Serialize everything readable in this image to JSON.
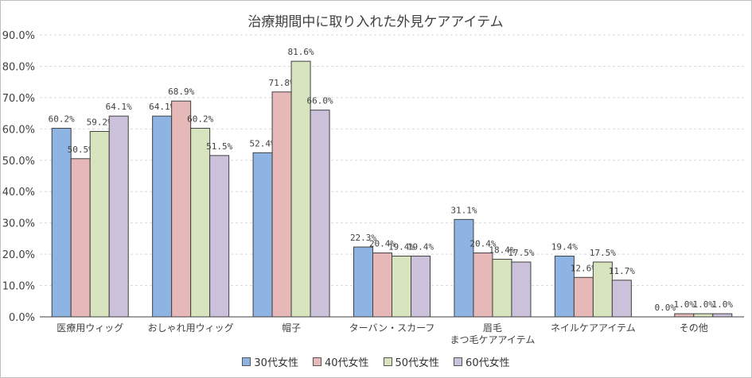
{
  "chart_data": {
    "type": "bar",
    "title": "治療期間中に取り入れた外見ケアアイテム",
    "categories": [
      "医療用ウィッグ",
      "おしゃれ用ウィッグ",
      "帽子",
      "ターバン・スカーフ",
      "眉毛\nまつ毛ケアアイテム",
      "ネイルケアアイテム",
      "その他"
    ],
    "series": [
      {
        "name": "30代女性",
        "color": "#8eb4e3",
        "values": [
          60.2,
          64.1,
          52.4,
          22.3,
          31.1,
          19.4,
          0.0
        ]
      },
      {
        "name": "40代女性",
        "color": "#e6b9b8",
        "values": [
          50.5,
          68.9,
          71.8,
          20.4,
          20.4,
          12.6,
          1.0
        ]
      },
      {
        "name": "50代女性",
        "color": "#d7e4bd",
        "values": [
          59.2,
          60.2,
          81.6,
          19.4,
          18.4,
          17.5,
          1.0
        ]
      },
      {
        "name": "60代女性",
        "color": "#ccc1da",
        "values": [
          64.1,
          51.5,
          66.0,
          19.4,
          17.5,
          11.7,
          1.0
        ]
      }
    ],
    "yticks": [
      "0.0%",
      "10.0%",
      "20.0%",
      "30.0%",
      "40.0%",
      "50.0%",
      "60.0%",
      "70.0%",
      "80.0%",
      "90.0%"
    ],
    "ylim": [
      0,
      90
    ],
    "xlabel": "",
    "ylabel": "",
    "grid": true,
    "legend": "bottom"
  }
}
